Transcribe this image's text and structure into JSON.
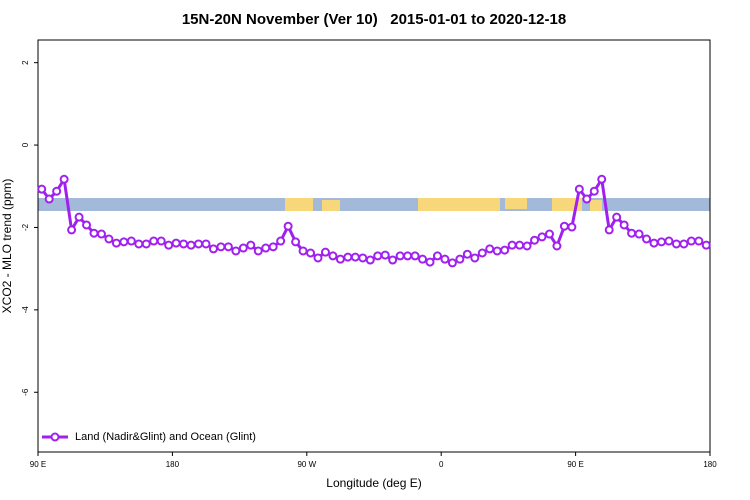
{
  "chart_data": {
    "type": "line",
    "title": "15N-20N November (Ver 10)   2015-01-01 to 2020-12-18",
    "x_label": "Longitude (deg E)",
    "y_label": "XCO2 - MLO trend (ppm)",
    "xlim": [
      90,
      540
    ],
    "xticks": [
      {
        "value": 90,
        "label": "90 E"
      },
      180,
      {
        "value": 270,
        "label": "90 W"
      },
      {
        "value": 360,
        "label": "0"
      },
      {
        "value": 450,
        "label": "90 E"
      },
      {
        "value": 540,
        "label": "180"
      }
    ],
    "ylim": [
      -7.45,
      2.55
    ],
    "yticks": [
      -6,
      -4,
      -2,
      0,
      2
    ],
    "legend": "bottom-left",
    "x": [
      92.5,
      97.5,
      102.5,
      107.5,
      112.5,
      117.5,
      122.5,
      127.5,
      132.5,
      137.5,
      142.5,
      147.5,
      152.5,
      157.5,
      162.5,
      167.5,
      172.5,
      177.5,
      182.5,
      187.5,
      192.5,
      197.5,
      202.5,
      207.5,
      212.5,
      217.5,
      222.5,
      227.5,
      232.5,
      237.5,
      242.5,
      247.5,
      252.5,
      257.5,
      262.5,
      267.5,
      272.5,
      277.5,
      282.5,
      287.5,
      292.5,
      297.5,
      302.5,
      307.5,
      312.5,
      317.5,
      322.5,
      327.5,
      332.5,
      337.5,
      342.5,
      347.5,
      352.5,
      357.5,
      362.5,
      367.5,
      372.5,
      377.5,
      382.5,
      387.5,
      392.5,
      397.5,
      402.5,
      407.5,
      412.5,
      417.5,
      422.5,
      427.5,
      432.5,
      437.5,
      442.5,
      447.5,
      452.5,
      457.5,
      462.5,
      467.5,
      472.5,
      477.5,
      482.5,
      487.5,
      492.5,
      497.5,
      502.5,
      507.5,
      512.5,
      517.5,
      522.5,
      527.5,
      532.5,
      537.5
    ],
    "series": [
      {
        "name": "Land (Nadir&Glint) and Ocean (Glint)",
        "color": "#a020f0",
        "values": [
          -1.07,
          -1.31,
          -1.12,
          -0.83,
          -2.06,
          -1.75,
          -1.94,
          -2.14,
          -2.16,
          -2.28,
          -2.38,
          -2.35,
          -2.33,
          -2.4,
          -2.4,
          -2.33,
          -2.33,
          -2.43,
          -2.38,
          -2.4,
          -2.43,
          -2.4,
          -2.4,
          -2.52,
          -2.47,
          -2.47,
          -2.57,
          -2.5,
          -2.43,
          -2.57,
          -2.5,
          -2.47,
          -2.33,
          -1.97,
          -2.35,
          -2.57,
          -2.62,
          -2.74,
          -2.6,
          -2.69,
          -2.77,
          -2.72,
          -2.72,
          -2.74,
          -2.79,
          -2.69,
          -2.67,
          -2.79,
          -2.69,
          -2.69,
          -2.69,
          -2.77,
          -2.84,
          -2.69,
          -2.77,
          -2.86,
          -2.77,
          -2.65,
          -2.74,
          -2.62,
          -2.52,
          -2.57,
          -2.55,
          -2.43,
          -2.43,
          -2.45,
          -2.31,
          -2.23,
          -2.16,
          -2.45,
          -1.97,
          -1.99,
          -1.07,
          -1.31,
          -1.12,
          -0.83,
          -2.06,
          -1.75,
          -1.94,
          -2.14,
          -2.16,
          -2.28,
          -2.38,
          -2.35,
          -2.33,
          -2.4,
          -2.4,
          -2.33,
          -2.33,
          -2.43
        ]
      }
    ]
  }
}
